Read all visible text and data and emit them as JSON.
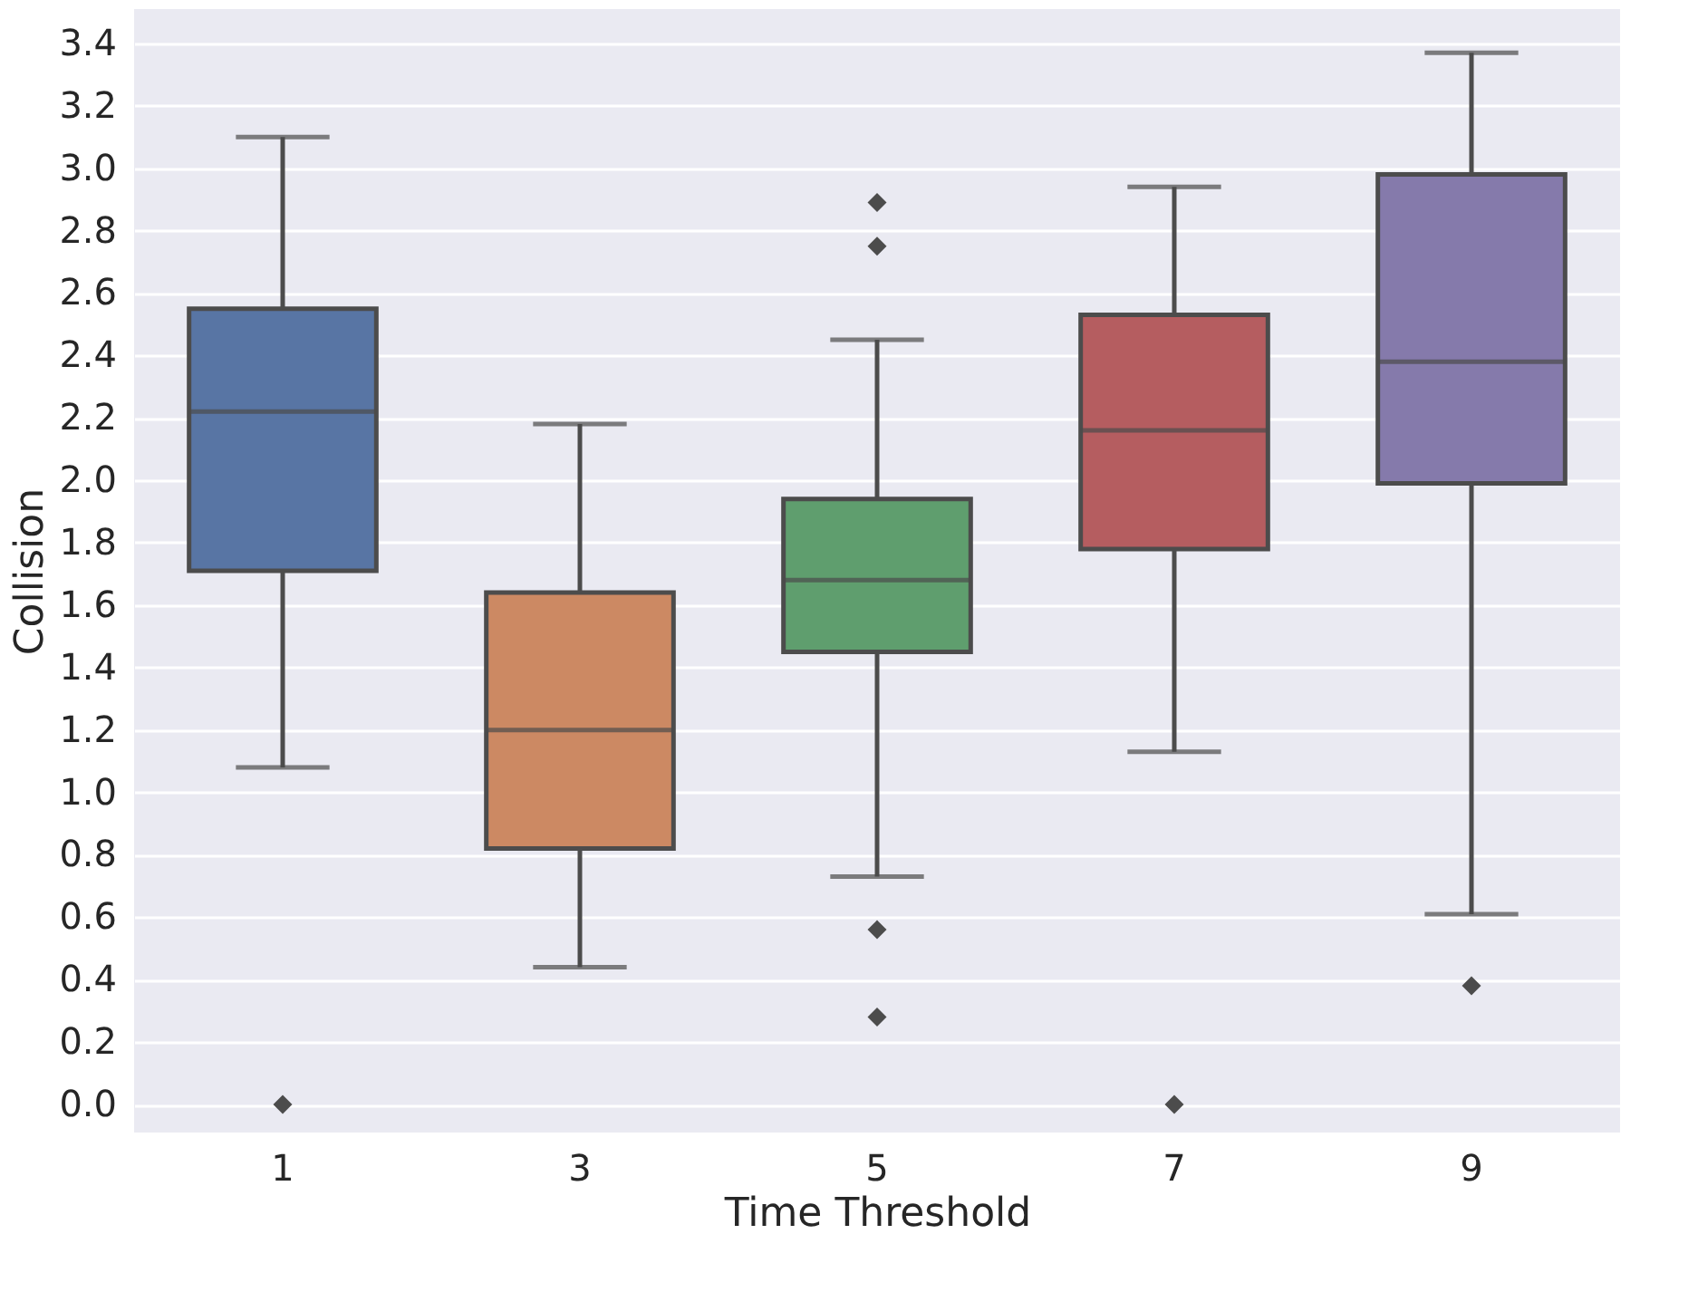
{
  "chart_data": {
    "type": "box",
    "xlabel": "Time Threshold",
    "ylabel": "Collision",
    "categories": [
      "1",
      "3",
      "5",
      "7",
      "9"
    ],
    "colors": [
      "#5875a4",
      "#cc8963",
      "#5f9e6e",
      "#b55d60",
      "#857aab"
    ],
    "boxes": [
      {
        "low": 1.08,
        "q1": 1.71,
        "median": 2.22,
        "q3": 2.55,
        "high": 3.1,
        "outliers": [
          0.0
        ]
      },
      {
        "low": 0.44,
        "q1": 0.82,
        "median": 1.2,
        "q3": 1.64,
        "high": 2.18
      },
      {
        "low": 0.73,
        "q1": 1.45,
        "median": 1.68,
        "q3": 1.94,
        "high": 2.45,
        "outliers": [
          2.89,
          2.75,
          0.56,
          0.28
        ]
      },
      {
        "low": 1.13,
        "q1": 1.78,
        "median": 2.16,
        "q3": 2.53,
        "high": 2.94,
        "outliers": [
          0.0
        ]
      },
      {
        "low": 0.61,
        "q1": 1.99,
        "median": 2.38,
        "q3": 2.98,
        "high": 3.37,
        "outliers": [
          0.38
        ]
      }
    ],
    "ylim": [
      -0.09,
      3.51
    ],
    "yticks": [
      {
        "value": 0,
        "label": "0.0"
      },
      0.2,
      0.4,
      0.6,
      0.8,
      {
        "value": 1,
        "label": "1.0"
      },
      1.2,
      1.4,
      1.6,
      1.8,
      {
        "value": 2,
        "label": "2.0"
      },
      2.2,
      2.4,
      2.6,
      2.8,
      {
        "value": 3,
        "label": "3.0"
      },
      3.2,
      3.4
    ],
    "grid": "y",
    "marker": "diamond"
  }
}
